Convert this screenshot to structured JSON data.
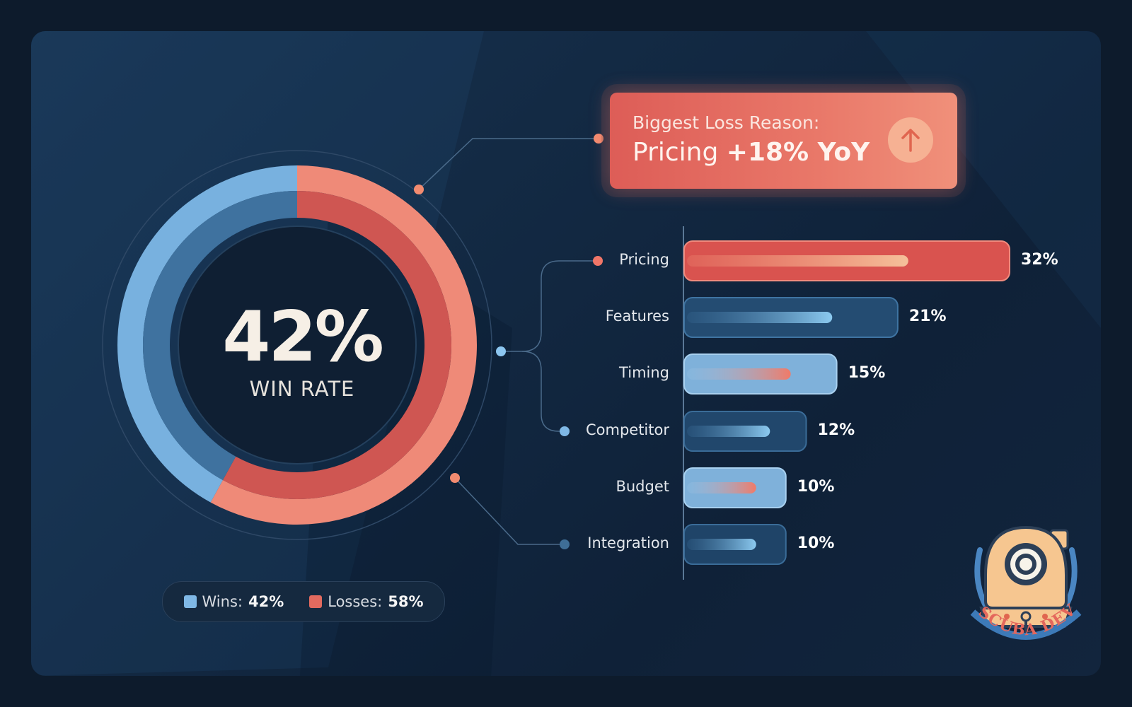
{
  "donut": {
    "center_value": "42%",
    "center_label": "WIN RATE",
    "wins_fraction": 0.42,
    "losses_fraction": 0.58
  },
  "legend": {
    "wins_label": "Wins:",
    "wins_value": "42%",
    "losses_label": "Losses:",
    "losses_value": "58%"
  },
  "callout": {
    "label": "Biggest Loss Reason:",
    "reason": "Pricing",
    "change": "+18% YoY",
    "icon": "arrow-up-icon"
  },
  "chart_data": {
    "type": "bar",
    "orientation": "horizontal",
    "categories": [
      "Pricing",
      "Features",
      "Timing",
      "Competitor",
      "Budget",
      "Integration"
    ],
    "values": [
      32,
      21,
      15,
      12,
      10,
      10
    ],
    "value_labels": [
      "32%",
      "21%",
      "15%",
      "12%",
      "10%",
      "10%"
    ],
    "unit": "%"
  },
  "colors": {
    "wins": "#7fb8e6",
    "losses": "#e26a5f",
    "background": "#0d1b2c",
    "accent_orange": "#f28b70"
  },
  "logo": {
    "text": "SCUBA DEV",
    "icon": "diving-helmet-icon"
  }
}
